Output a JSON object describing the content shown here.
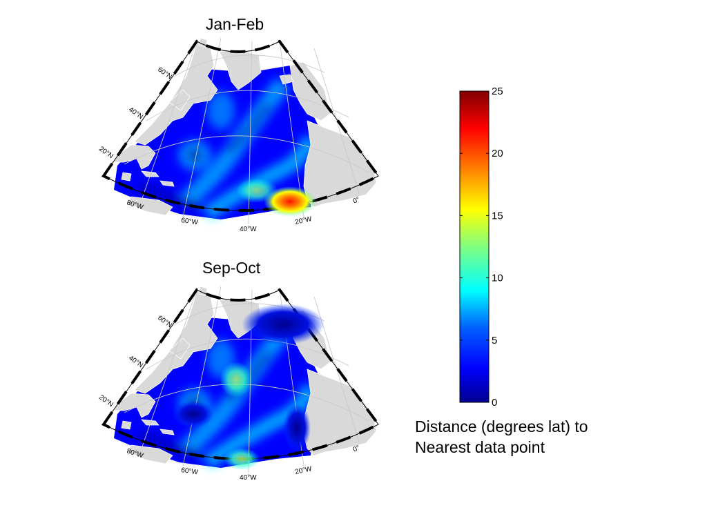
{
  "maps": [
    {
      "title": "Jan-Feb",
      "lat_labels": [
        "60°N",
        "40°N",
        "20°N"
      ],
      "lon_labels": [
        "80°W",
        "60°W",
        "40°W",
        "20°W",
        "0°"
      ]
    },
    {
      "title": "Sep-Oct",
      "lat_labels": [
        "60°N",
        "40°N",
        "20°N"
      ],
      "lon_labels": [
        "80°W",
        "60°W",
        "40°W",
        "20°W",
        "0°"
      ]
    }
  ],
  "colorbar": {
    "ticks": [
      "0",
      "5",
      "10",
      "15",
      "20",
      "25"
    ],
    "min": 0,
    "max": 25,
    "colormap": [
      "#00008f",
      "#0000ff",
      "#0080ff",
      "#00ffff",
      "#80ff80",
      "#ffff00",
      "#ff8000",
      "#ff0000",
      "#800000"
    ],
    "label_line1": "Distance (degrees lat) to",
    "label_line2": "Nearest data point"
  }
}
